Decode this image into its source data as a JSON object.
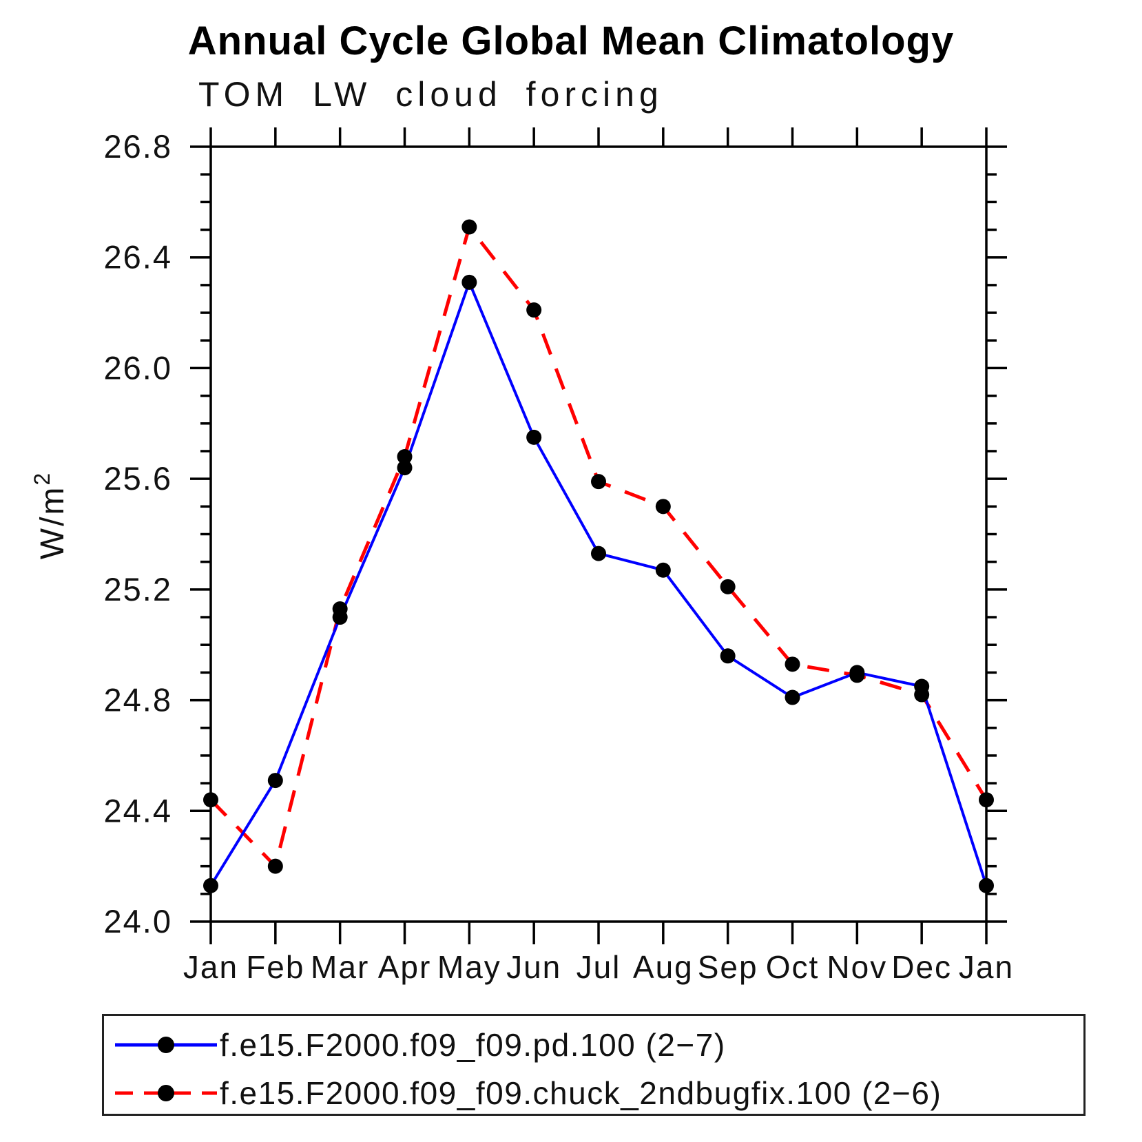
{
  "chart_data": {
    "type": "line",
    "title": "Annual Cycle Global Mean Climatology",
    "subtitle": "TOM LW cloud forcing",
    "ylabel": "W/m²",
    "xlabel": "",
    "categories": [
      "Jan",
      "Feb",
      "Mar",
      "Apr",
      "May",
      "Jun",
      "Jul",
      "Aug",
      "Sep",
      "Oct",
      "Nov",
      "Dec",
      "Jan"
    ],
    "series": [
      {
        "name": "f.e15.F2000.f09_f09.pd.100 (2−7)",
        "color": "#0000ff",
        "line_style": "solid",
        "line_width": 4,
        "marker": "filled-circle",
        "marker_color": "#000000",
        "values": [
          24.13,
          24.51,
          25.1,
          25.64,
          26.31,
          25.75,
          25.33,
          25.27,
          24.96,
          24.81,
          24.9,
          24.85,
          24.13
        ]
      },
      {
        "name": "f.e15.F2000.f09_f09.chuck_2ndbugfix.100 (2−6)",
        "color": "#ff0000",
        "line_style": "dashed",
        "line_width": 5,
        "marker": "filled-circle",
        "marker_color": "#000000",
        "values": [
          24.44,
          24.2,
          25.13,
          25.68,
          26.51,
          26.21,
          25.59,
          25.5,
          25.21,
          24.93,
          24.89,
          24.82,
          24.44
        ]
      }
    ],
    "ylim": [
      24.0,
      26.8
    ],
    "y_major_step": 0.4,
    "y_minor_step": 0.1,
    "y_tick_labels": [
      "24.0",
      "24.4",
      "24.8",
      "25.2",
      "25.6",
      "26.0",
      "26.4",
      "26.8"
    ],
    "grid": false,
    "frame": "full-box-outward-ticks",
    "axis_color": "#000000",
    "legend_position": "bottom-left-box"
  }
}
